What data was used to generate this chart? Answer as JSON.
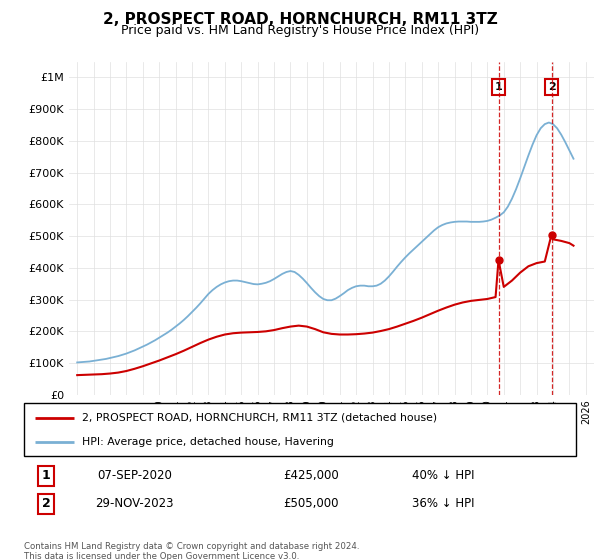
{
  "title": "2, PROSPECT ROAD, HORNCHURCH, RM11 3TZ",
  "subtitle": "Price paid vs. HM Land Registry's House Price Index (HPI)",
  "hpi_color": "#7ab0d4",
  "price_color": "#cc0000",
  "transaction1": {
    "date": "07-SEP-2020",
    "price": "£425,000",
    "label": "40% ↓ HPI",
    "x": 2020.68
  },
  "transaction2": {
    "date": "29-NOV-2023",
    "price": "£505,000",
    "label": "36% ↓ HPI",
    "x": 2023.91
  },
  "legend_line1": "2, PROSPECT ROAD, HORNCHURCH, RM11 3TZ (detached house)",
  "legend_line2": "HPI: Average price, detached house, Havering",
  "footer": "Contains HM Land Registry data © Crown copyright and database right 2024.\nThis data is licensed under the Open Government Licence v3.0.",
  "ylim": [
    0,
    1050000
  ],
  "xlim": [
    1994.5,
    2026.5
  ],
  "yticks": [
    0,
    100000,
    200000,
    300000,
    400000,
    500000,
    600000,
    700000,
    800000,
    900000,
    1000000
  ],
  "ylabels": [
    "£0",
    "£100K",
    "£200K",
    "£300K",
    "£400K",
    "£500K",
    "£600K",
    "£700K",
    "£800K",
    "£900K",
    "£1M"
  ],
  "hpi_x": [
    1995,
    1995.25,
    1995.5,
    1995.75,
    1996,
    1996.25,
    1996.5,
    1996.75,
    1997,
    1997.25,
    1997.5,
    1997.75,
    1998,
    1998.25,
    1998.5,
    1998.75,
    1999,
    1999.25,
    1999.5,
    1999.75,
    2000,
    2000.25,
    2000.5,
    2000.75,
    2001,
    2001.25,
    2001.5,
    2001.75,
    2002,
    2002.25,
    2002.5,
    2002.75,
    2003,
    2003.25,
    2003.5,
    2003.75,
    2004,
    2004.25,
    2004.5,
    2004.75,
    2005,
    2005.25,
    2005.5,
    2005.75,
    2006,
    2006.25,
    2006.5,
    2006.75,
    2007,
    2007.25,
    2007.5,
    2007.75,
    2008,
    2008.25,
    2008.5,
    2008.75,
    2009,
    2009.25,
    2009.5,
    2009.75,
    2010,
    2010.25,
    2010.5,
    2010.75,
    2011,
    2011.25,
    2011.5,
    2011.75,
    2012,
    2012.25,
    2012.5,
    2012.75,
    2013,
    2013.25,
    2013.5,
    2013.75,
    2014,
    2014.25,
    2014.5,
    2014.75,
    2015,
    2015.25,
    2015.5,
    2015.75,
    2016,
    2016.25,
    2016.5,
    2016.75,
    2017,
    2017.25,
    2017.5,
    2017.75,
    2018,
    2018.25,
    2018.5,
    2018.75,
    2019,
    2019.25,
    2019.5,
    2019.75,
    2020,
    2020.25,
    2020.5,
    2020.75,
    2021,
    2021.25,
    2021.5,
    2021.75,
    2022,
    2022.25,
    2022.5,
    2022.75,
    2023,
    2023.25,
    2023.5,
    2023.75,
    2024,
    2024.25,
    2024.5,
    2024.75,
    2025,
    2025.25
  ],
  "hpi_y": [
    102000,
    103000,
    104000,
    105000,
    107000,
    109000,
    111000,
    113000,
    116000,
    119000,
    122000,
    126000,
    130000,
    135000,
    140000,
    146000,
    152000,
    158000,
    165000,
    172000,
    180000,
    188000,
    196000,
    205000,
    215000,
    225000,
    236000,
    248000,
    261000,
    274000,
    288000,
    303000,
    318000,
    330000,
    340000,
    348000,
    354000,
    358000,
    360000,
    360000,
    358000,
    355000,
    352000,
    349000,
    348000,
    350000,
    353000,
    358000,
    365000,
    373000,
    381000,
    387000,
    390000,
    387000,
    378000,
    366000,
    352000,
    337000,
    323000,
    311000,
    302000,
    298000,
    298000,
    303000,
    311000,
    320000,
    330000,
    337000,
    342000,
    344000,
    344000,
    342000,
    342000,
    344000,
    350000,
    360000,
    373000,
    388000,
    404000,
    419000,
    433000,
    446000,
    458000,
    470000,
    482000,
    494000,
    506000,
    518000,
    528000,
    535000,
    540000,
    543000,
    545000,
    546000,
    546000,
    546000,
    545000,
    545000,
    545000,
    546000,
    548000,
    552000,
    558000,
    565000,
    575000,
    593000,
    618000,
    648000,
    682000,
    718000,
    754000,
    788000,
    818000,
    840000,
    853000,
    858000,
    853000,
    840000,
    820000,
    796000,
    770000,
    744000
  ],
  "red_x": [
    1995,
    1995.5,
    1996,
    1996.5,
    1997,
    1997.5,
    1998,
    1998.5,
    1999,
    1999.5,
    2000,
    2000.5,
    2001,
    2001.5,
    2002,
    2002.5,
    2003,
    2003.5,
    2004,
    2004.5,
    2005,
    2005.5,
    2006,
    2006.5,
    2007,
    2007.5,
    2008,
    2008.5,
    2009,
    2009.5,
    2010,
    2010.5,
    2011,
    2011.5,
    2012,
    2012.5,
    2013,
    2013.5,
    2014,
    2014.5,
    2015,
    2015.5,
    2016,
    2016.5,
    2017,
    2017.5,
    2018,
    2018.5,
    2019,
    2019.5,
    2020,
    2020.5,
    2020.68,
    2021,
    2021.5,
    2022,
    2022.5,
    2023,
    2023.5,
    2023.91,
    2024,
    2024.5,
    2025,
    2025.25
  ],
  "red_y": [
    62000,
    63000,
    64000,
    65000,
    67000,
    70000,
    75000,
    82000,
    90000,
    99000,
    108000,
    118000,
    128000,
    139000,
    151000,
    163000,
    174000,
    183000,
    190000,
    194000,
    196000,
    197000,
    198000,
    200000,
    204000,
    210000,
    215000,
    218000,
    215000,
    207000,
    197000,
    192000,
    190000,
    190000,
    191000,
    193000,
    196000,
    201000,
    207000,
    215000,
    224000,
    233000,
    243000,
    254000,
    265000,
    275000,
    284000,
    291000,
    296000,
    299000,
    302000,
    308000,
    425000,
    340000,
    360000,
    385000,
    405000,
    415000,
    420000,
    505000,
    490000,
    485000,
    478000,
    470000
  ]
}
